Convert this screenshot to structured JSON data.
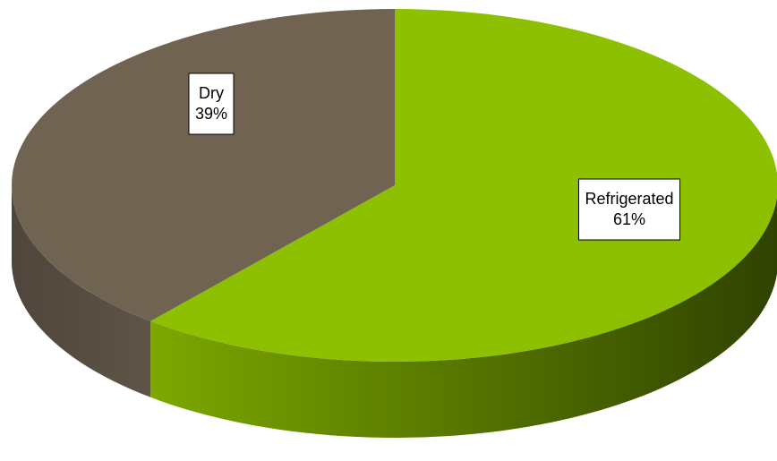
{
  "chart_data": {
    "type": "pie3d",
    "categories": [
      "Refrigerated",
      "Dry"
    ],
    "values": [
      61,
      39
    ],
    "value_labels": [
      "61%",
      "39%"
    ],
    "colors": [
      "#8dc000",
      "#706352"
    ]
  }
}
